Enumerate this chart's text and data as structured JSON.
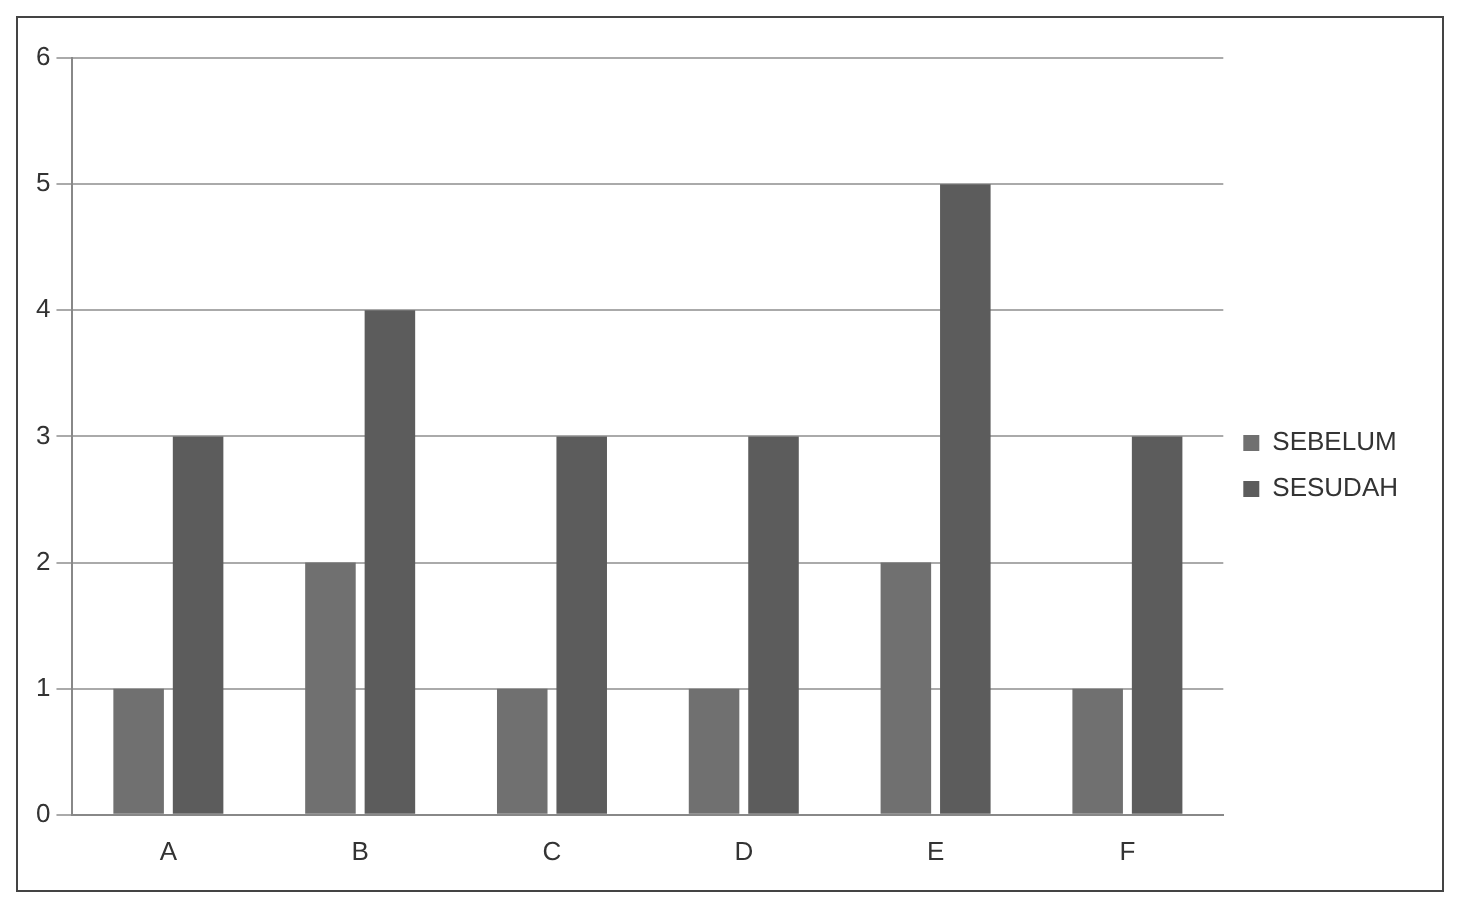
{
  "chart_data": {
    "type": "bar",
    "categories": [
      "A",
      "B",
      "C",
      "D",
      "E",
      "F"
    ],
    "series": [
      {
        "name": "SEBELUM",
        "color": "#707070",
        "values": [
          1,
          2,
          1,
          1,
          2,
          1
        ]
      },
      {
        "name": "SESUDAH",
        "color": "#5c5c5c",
        "values": [
          3,
          4,
          3,
          3,
          5,
          3
        ]
      }
    ],
    "ylim": [
      0,
      6
    ],
    "yticks": [
      0,
      1,
      2,
      3,
      4,
      5,
      6
    ],
    "grid": "y",
    "legend": "right"
  }
}
